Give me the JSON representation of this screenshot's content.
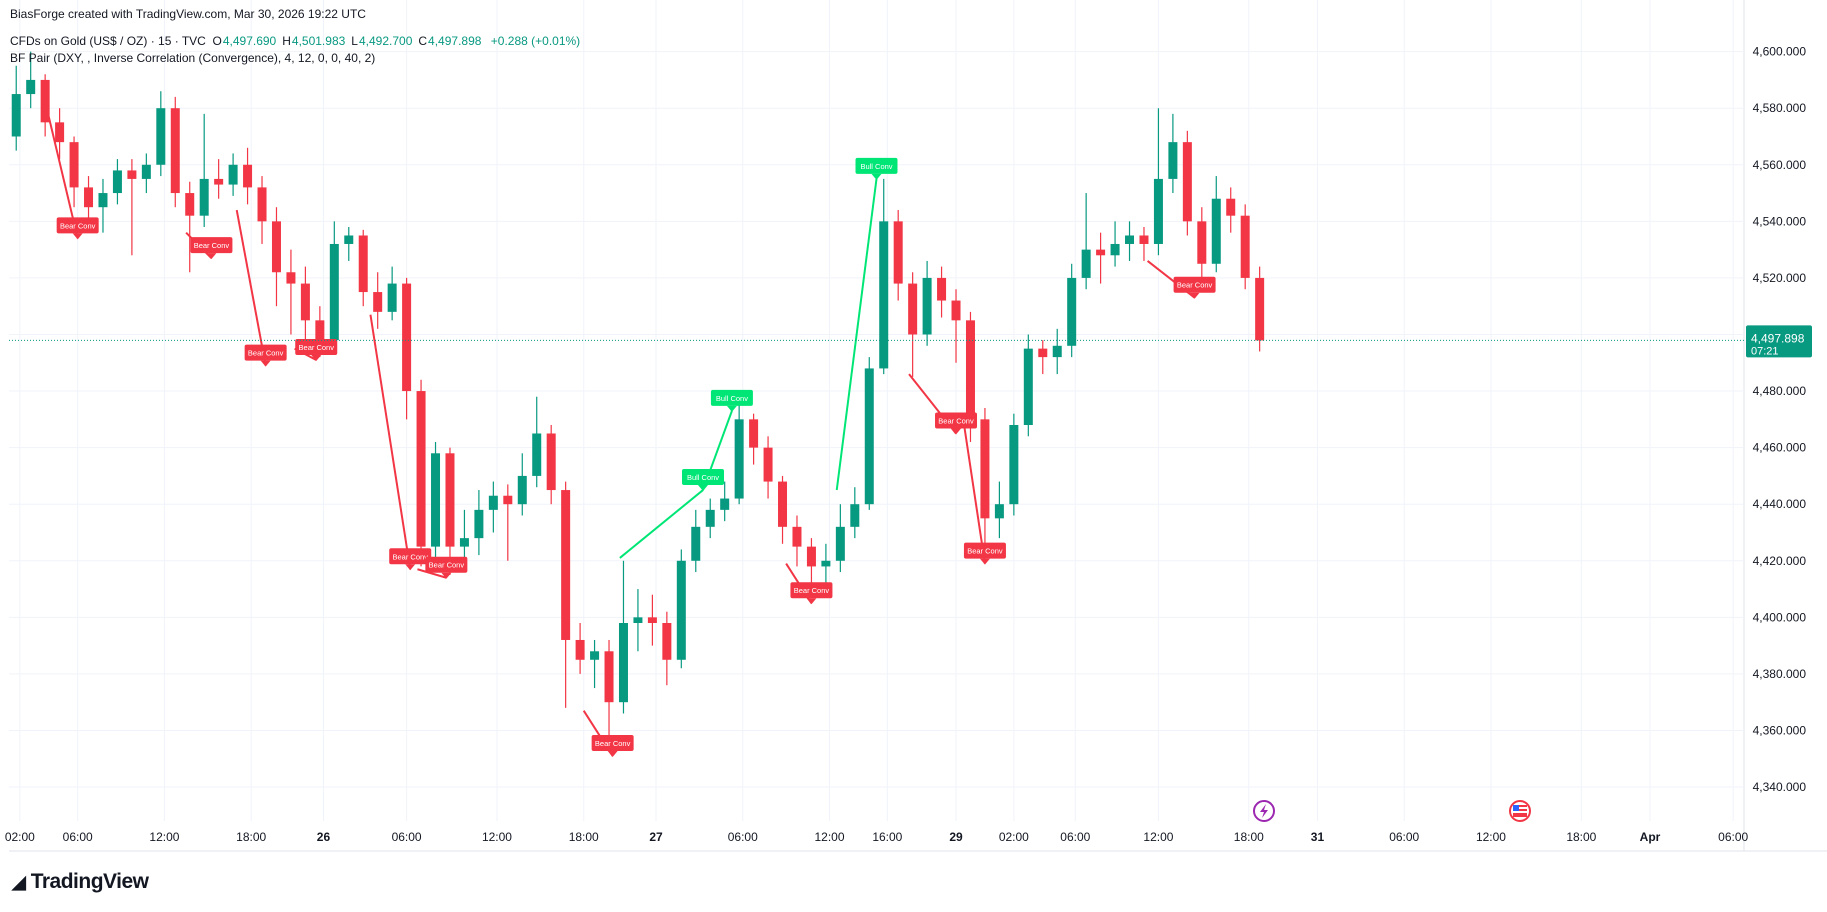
{
  "header": {
    "attribution": "BiasForge created with TradingView.com, Mar 30, 2026 19:22 UTC",
    "symbol": "CFDs on Gold (US$ / OZ) · 15 · TVC",
    "ohlc": [
      {
        "key": "O",
        "value": "4,497.690"
      },
      {
        "key": "H",
        "value": "4,501.983"
      },
      {
        "key": "L",
        "value": "4,492.700"
      },
      {
        "key": "C",
        "value": "4,497.898"
      }
    ],
    "change": "+0.288 (+0.01%)",
    "indicator": "BF Pair (DXY, , Inverse Correlation (Convergence), 4, 12, 0, 0, 40, 2)"
  },
  "chart_data": {
    "type": "candlestick",
    "up_color": "#089981",
    "down_color": "#f23645",
    "bear_color": "#f23645",
    "bull_color": "#00e676",
    "grid": true,
    "ylim": [
      4328,
      4608
    ],
    "yticks": [
      {
        "value": 4340,
        "label": "4,340.000"
      },
      {
        "value": 4360,
        "label": "4,360.000"
      },
      {
        "value": 4380,
        "label": "4,380.000"
      },
      {
        "value": 4400,
        "label": "4,400.000"
      },
      {
        "value": 4420,
        "label": "4,420.000"
      },
      {
        "value": 4440,
        "label": "4,440.000"
      },
      {
        "value": 4460,
        "label": "4,460.000"
      },
      {
        "value": 4480,
        "label": "4,480.000"
      },
      {
        "value": 4500,
        "label": "4,500.000"
      },
      {
        "value": 4520,
        "label": "4,520.000"
      },
      {
        "value": 4540,
        "label": "4,540.000"
      },
      {
        "value": 4560,
        "label": "4,560.000"
      },
      {
        "value": 4580,
        "label": "4,580.000"
      },
      {
        "value": 4600,
        "label": "4,600.000"
      }
    ],
    "xlim": [
      -3,
      477
    ],
    "xticks": [
      {
        "value": 0,
        "label": "02:00"
      },
      {
        "value": 16,
        "label": "06:00"
      },
      {
        "value": 40,
        "label": "12:00"
      },
      {
        "value": 64,
        "label": "18:00"
      },
      {
        "value": 84,
        "label": "26"
      },
      {
        "value": 107,
        "label": "06:00"
      },
      {
        "value": 132,
        "label": "12:00"
      },
      {
        "value": 156,
        "label": "18:00"
      },
      {
        "value": 176,
        "label": "27"
      },
      {
        "value": 200,
        "label": "06:00"
      },
      {
        "value": 224,
        "label": "12:00"
      },
      {
        "value": 240,
        "label": "16:00"
      },
      {
        "value": 259,
        "label": "29"
      },
      {
        "value": 275,
        "label": "02:00"
      },
      {
        "value": 292,
        "label": "06:00"
      },
      {
        "value": 315,
        "label": "12:00"
      },
      {
        "value": 340,
        "label": "18:00"
      },
      {
        "value": 359,
        "label": "31"
      },
      {
        "value": 383,
        "label": "06:00"
      },
      {
        "value": 407,
        "label": "12:00"
      },
      {
        "value": 432,
        "label": "18:00"
      },
      {
        "value": 451,
        "label": "Apr"
      },
      {
        "value": 474,
        "label": "06:00"
      }
    ],
    "x": [
      -1,
      3,
      7,
      11,
      15,
      19,
      23,
      27,
      31,
      35,
      39,
      43,
      47,
      51,
      55,
      59,
      63,
      67,
      71,
      75,
      79,
      83,
      87,
      91,
      95,
      99,
      103,
      107,
      111,
      115,
      119,
      123,
      127,
      131,
      135,
      139,
      143,
      147,
      151,
      155,
      159,
      163,
      167,
      171,
      175,
      179,
      183,
      187,
      191,
      195,
      199,
      203,
      207,
      211,
      215,
      219,
      223,
      227,
      231,
      235,
      239,
      243,
      247,
      251,
      255,
      259,
      263,
      267,
      271,
      275,
      279,
      283,
      287,
      291,
      295,
      299,
      303,
      307,
      311,
      315,
      319,
      323,
      327,
      331,
      335,
      339,
      343
    ],
    "open": [
      4570,
      4585,
      4590,
      4575,
      4568,
      4552,
      4545,
      4550,
      4558,
      4555,
      4560,
      4580,
      4550,
      4542,
      4555,
      4553,
      4560,
      4552,
      4540,
      4522,
      4518,
      4505,
      4498,
      4532,
      4535,
      4515,
      4508,
      4518,
      4480,
      4425,
      4458,
      4425,
      4428,
      4438,
      4443,
      4440,
      4450,
      4465,
      4445,
      4392,
      4385,
      4388,
      4370,
      4398,
      4400,
      4398,
      4385,
      4420,
      4432,
      4438,
      4442,
      4470,
      4460,
      4448,
      4432,
      4425,
      4418,
      4420,
      4432,
      4440,
      4488,
      4540,
      4518,
      4500,
      4520,
      4512,
      4505,
      4470,
      4435,
      4440,
      4468,
      4495,
      4492,
      4496,
      4520,
      4530,
      4528,
      4532,
      4535,
      4532,
      4555,
      4568,
      4540,
      4525,
      4548,
      4542,
      4520
    ],
    "high": [
      4595,
      4600,
      4592,
      4580,
      4570,
      4556,
      4555,
      4562,
      4562,
      4564,
      4586,
      4584,
      4554,
      4578,
      4562,
      4564,
      4566,
      4556,
      4545,
      4530,
      4524,
      4510,
      4540,
      4538,
      4537,
      4522,
      4524,
      4520,
      4484,
      4462,
      4460,
      4438,
      4445,
      4448,
      4447,
      4458,
      4478,
      4468,
      4448,
      4398,
      4392,
      4392,
      4420,
      4410,
      4408,
      4402,
      4424,
      4438,
      4442,
      4448,
      4475,
      4472,
      4464,
      4450,
      4436,
      4428,
      4426,
      4440,
      4446,
      4492,
      4555,
      4544,
      4522,
      4526,
      4524,
      4516,
      4508,
      4474,
      4448,
      4472,
      4500,
      4498,
      4502,
      4525,
      4550,
      4536,
      4540,
      4540,
      4538,
      4580,
      4578,
      4572,
      4545,
      4556,
      4552,
      4546,
      4524
    ],
    "low": [
      4565,
      4580,
      4570,
      4562,
      4545,
      4538,
      4536,
      4546,
      4528,
      4550,
      4556,
      4545,
      4522,
      4538,
      4548,
      4549,
      4546,
      4532,
      4510,
      4500,
      4495,
      4492,
      4496,
      4526,
      4510,
      4502,
      4505,
      4470,
      4418,
      4420,
      4415,
      4418,
      4422,
      4430,
      4420,
      4436,
      4446,
      4440,
      4368,
      4380,
      4375,
      4356,
      4366,
      4388,
      4390,
      4376,
      4382,
      4416,
      4428,
      4434,
      4440,
      4454,
      4442,
      4426,
      4418,
      4410,
      4412,
      4416,
      4428,
      4438,
      4486,
      4512,
      4485,
      4496,
      4506,
      4490,
      4462,
      4424,
      4428,
      4436,
      4464,
      4486,
      4486,
      4492,
      4516,
      4518,
      4524,
      4526,
      4526,
      4528,
      4550,
      4535,
      4516,
      4522,
      4536,
      4516,
      4494
    ],
    "close": [
      4585,
      4590,
      4575,
      4568,
      4552,
      4545,
      4550,
      4558,
      4555,
      4560,
      4580,
      4550,
      4542,
      4555,
      4553,
      4560,
      4552,
      4540,
      4522,
      4518,
      4505,
      4498,
      4532,
      4535,
      4515,
      4508,
      4518,
      4480,
      4425,
      4458,
      4425,
      4428,
      4438,
      4443,
      4440,
      4450,
      4465,
      4445,
      4392,
      4385,
      4388,
      4370,
      4398,
      4400,
      4398,
      4385,
      4420,
      4432,
      4438,
      4442,
      4470,
      4460,
      4448,
      4432,
      4425,
      4418,
      4420,
      4432,
      4440,
      4488,
      4540,
      4518,
      4500,
      4520,
      4512,
      4505,
      4470,
      4435,
      4440,
      4468,
      4495,
      4492,
      4496,
      4520,
      4530,
      4528,
      4532,
      4535,
      4532,
      4555,
      4568,
      4540,
      4525,
      4548,
      4542,
      4520,
      4497.898
    ],
    "signals": [
      {
        "label": "Bear Conv",
        "kind": "bear",
        "from": [
          8,
          4577
        ],
        "to": [
          16,
          4534
        ]
      },
      {
        "label": "Bear Conv",
        "kind": "bear",
        "from": [
          46,
          4536
        ],
        "to": [
          53,
          4527
        ]
      },
      {
        "label": "Bear Conv",
        "kind": "bear",
        "from": [
          60,
          4544
        ],
        "to": [
          68,
          4489
        ]
      },
      {
        "label": "Bear Conv",
        "kind": "bear",
        "from": [
          76,
          4495
        ],
        "to": [
          82,
          4491
        ]
      },
      {
        "label": "Bear Conv",
        "kind": "bear",
        "from": [
          97,
          4507
        ],
        "to": [
          108,
          4417
        ]
      },
      {
        "label": "Bear Conv",
        "kind": "bear",
        "from": [
          110,
          4417
        ],
        "to": [
          118,
          4414
        ]
      },
      {
        "label": "Bear Conv",
        "kind": "bear",
        "from": [
          156,
          4367
        ],
        "to": [
          164,
          4351
        ]
      },
      {
        "label": "Bear Conv",
        "kind": "bear",
        "from": [
          212,
          4419
        ],
        "to": [
          219,
          4405
        ]
      },
      {
        "label": "Bear Conv",
        "kind": "bear",
        "from": [
          246,
          4486
        ],
        "to": [
          259,
          4465
        ]
      },
      {
        "label": "Bear Conv",
        "kind": "bear",
        "from": [
          261,
          4470
        ],
        "to": [
          267,
          4419
        ]
      },
      {
        "label": "Bear Conv",
        "kind": "bear",
        "from": [
          312,
          4526
        ],
        "to": [
          325,
          4513
        ]
      },
      {
        "label": "Bull Conv",
        "kind": "bull",
        "from": [
          166,
          4421
        ],
        "to": [
          189,
          4445
        ]
      },
      {
        "label": "Bull Conv",
        "kind": "bull",
        "from": [
          189,
          4445
        ],
        "to": [
          197,
          4473
        ]
      },
      {
        "label": "Bull Conv",
        "kind": "bull",
        "from": [
          226,
          4445
        ],
        "to": [
          237,
          4555
        ]
      }
    ],
    "last_price": {
      "value": 4497.898,
      "label": "4,497.898"
    },
    "countdown": "07:21"
  },
  "footer": {
    "brand": "TradingView"
  }
}
